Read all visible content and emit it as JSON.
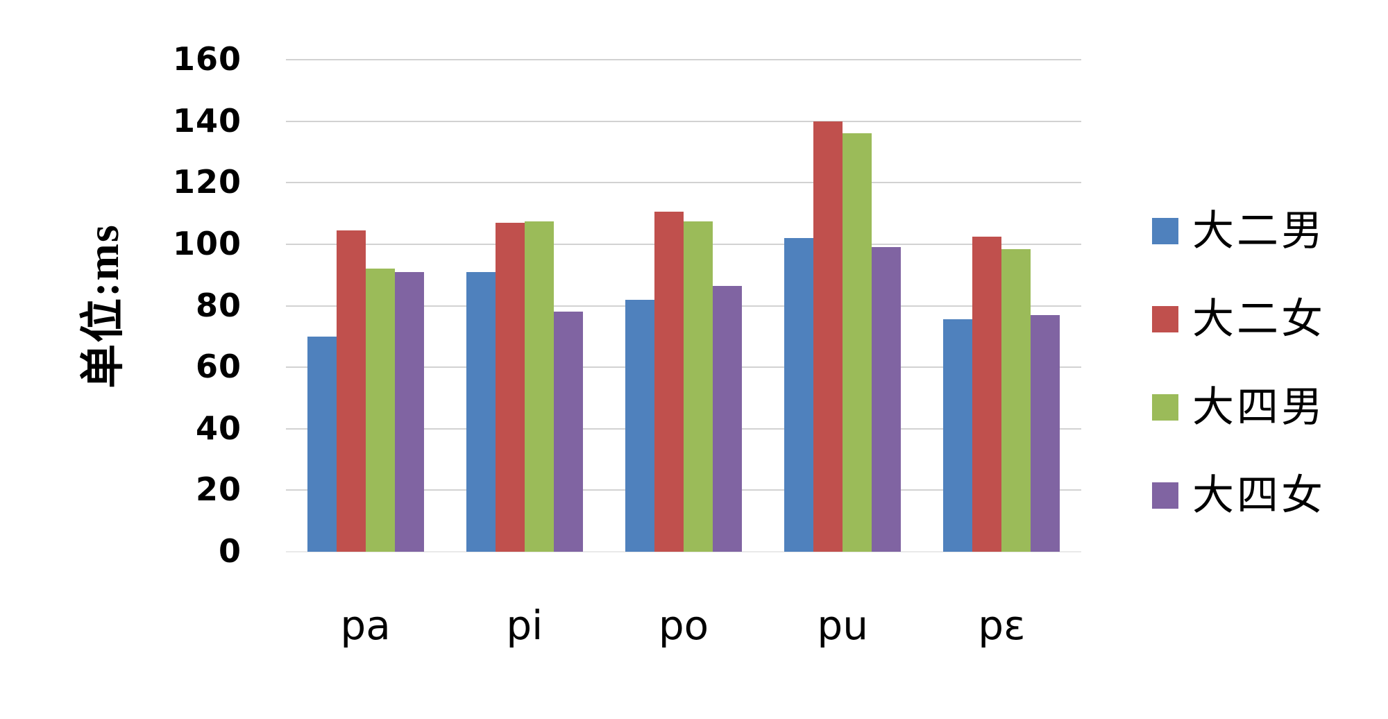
{
  "chart_data": {
    "type": "bar",
    "title": "",
    "ylabel": "单位:ms",
    "xlabel": "",
    "categories": [
      "pa",
      "pi",
      "po",
      "pu",
      "pε"
    ],
    "series": [
      {
        "name": "大二男",
        "color": "#4F81BD",
        "values": [
          70,
          91,
          82,
          102,
          75.5
        ]
      },
      {
        "name": "大二女",
        "color": "#C0504D",
        "values": [
          104.5,
          107,
          110.5,
          140,
          102.5
        ]
      },
      {
        "name": "大四男",
        "color": "#9BBB59",
        "values": [
          92,
          107.5,
          107.5,
          136,
          98.5
        ]
      },
      {
        "name": "大四女",
        "color": "#8064A2",
        "values": [
          91,
          78,
          86.5,
          99,
          77
        ]
      }
    ],
    "ylim": [
      0,
      160
    ],
    "ytick_step": 20,
    "yticks": [
      0,
      20,
      40,
      60,
      80,
      100,
      120,
      140,
      160
    ],
    "grid": true,
    "gridline_color": "#D2D2D2",
    "legend_position": "right"
  }
}
